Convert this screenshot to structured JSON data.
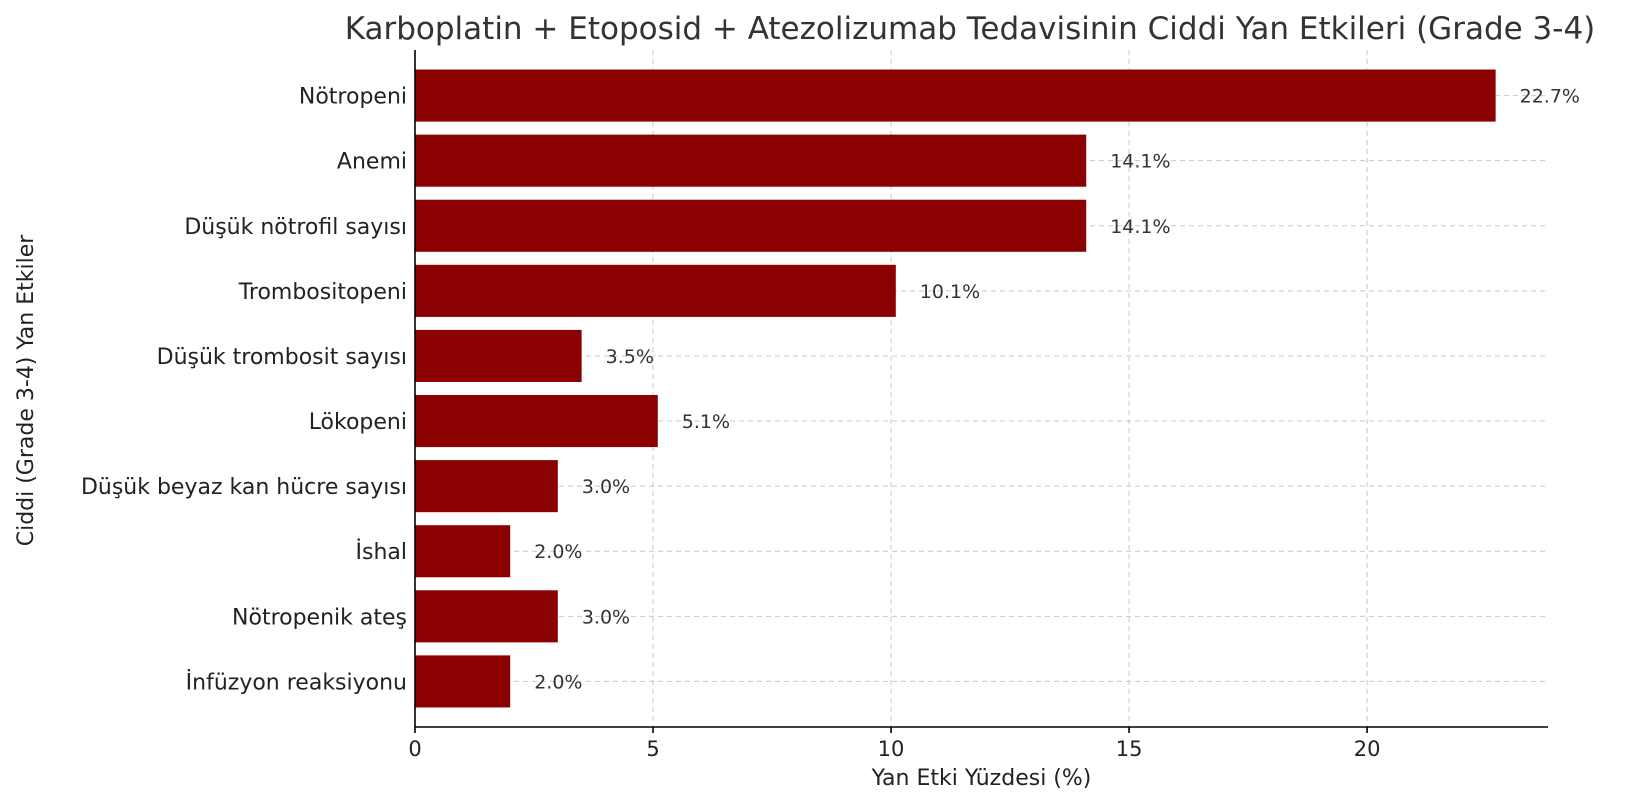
{
  "chart_data": {
    "type": "bar",
    "orientation": "horizontal",
    "title": "Karboplatin + Etoposid + Atezolizumab Tedavisinin Ciddi Yan Etkileri (Grade 3-4)",
    "xlabel": "Yan Etki Yüzdesi (%)",
    "ylabel": "Ciddi (Grade 3-4) Yan Etkiler",
    "categories": [
      "Nötropeni",
      "Anemi",
      "Düşük nötrofil sayısı",
      "Trombositopeni",
      "Düşük trombosit sayısı",
      "Lökopeni",
      "Düşük beyaz kan hücre sayısı",
      "İshal",
      "Nötropenik ateş",
      "İnfüzyon reaksiyonu"
    ],
    "values": [
      22.7,
      14.1,
      14.1,
      10.1,
      3.5,
      5.1,
      3.0,
      2.0,
      3.0,
      2.0
    ],
    "value_labels": [
      "22.7%",
      "14.1%",
      "14.1%",
      "10.1%",
      "3.5%",
      "5.1%",
      "3.0%",
      "2.0%",
      "3.0%",
      "2.0%"
    ],
    "xlim": [
      0,
      23.8
    ],
    "xticks": [
      0,
      5,
      10,
      15,
      20
    ],
    "xtick_labels": [
      "0",
      "5",
      "10",
      "15",
      "20"
    ],
    "grid": true,
    "bar_color": "#8b0000"
  }
}
